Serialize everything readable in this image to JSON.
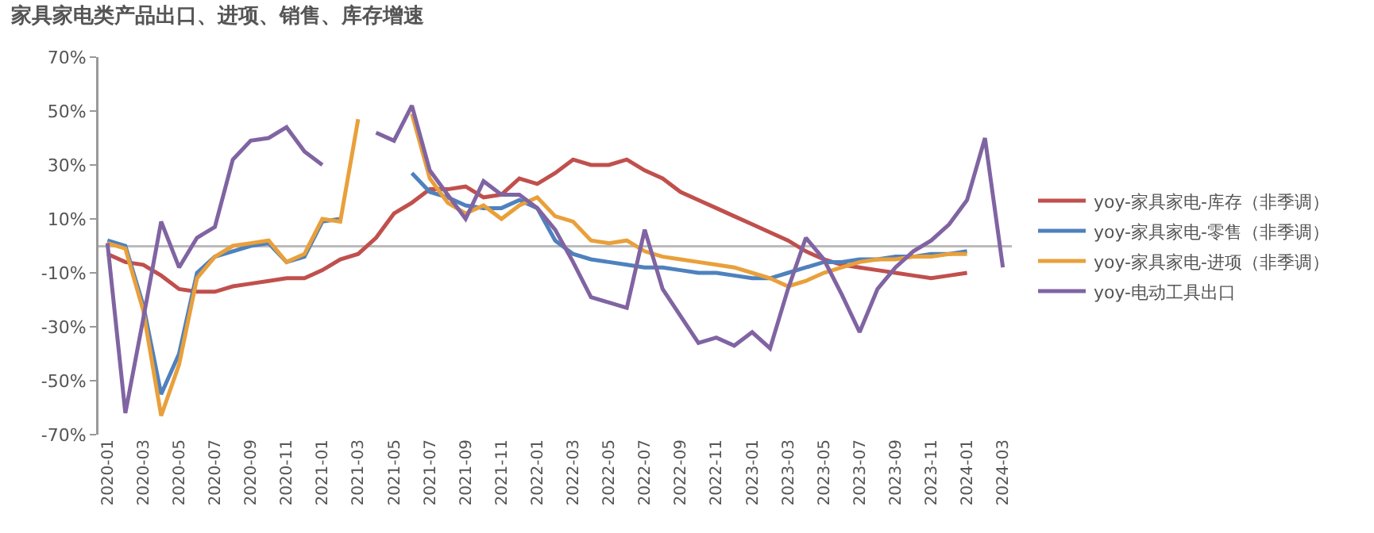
{
  "chart_data": {
    "type": "line",
    "title": "家具家电类产品出口、进项、销售、库存增速",
    "categories": [
      "2020-01",
      null,
      "2020-03",
      null,
      "2020-05",
      null,
      "2020-07",
      null,
      "2020-09",
      null,
      "2020-11",
      null,
      "2021-01",
      null,
      "2021-03",
      null,
      "2021-05",
      null,
      "2021-07",
      null,
      "2021-09",
      null,
      "2021-11",
      null,
      "2022-01",
      null,
      "2022-03",
      null,
      "2022-05",
      null,
      "2022-07",
      null,
      "2022-09",
      null,
      "2022-11",
      null,
      "2023-01",
      null,
      "2023-03",
      null,
      "2023-05",
      null,
      "2023-07",
      null,
      "2023-09",
      null,
      "2023-11",
      null,
      "2024-01",
      null,
      "2024-03"
    ],
    "series": [
      {
        "name": "yoy-家具家电-库存（非季调）",
        "color": "#c0504d",
        "values": [
          -3,
          -6,
          -7,
          -11,
          -16,
          -17,
          -17,
          -15,
          -14,
          -13,
          -12,
          -12,
          -9,
          -5,
          -3,
          3,
          12,
          16,
          21,
          21,
          22,
          18,
          19,
          25,
          23,
          27,
          32,
          30,
          30,
          32,
          28,
          25,
          20,
          17,
          14,
          11,
          8,
          5,
          2,
          -2,
          -5,
          -7,
          -8,
          -9,
          -10,
          -11,
          -12,
          -11,
          -10,
          null,
          null
        ]
      },
      {
        "name": "yoy-家具家电-零售（非季调）",
        "color": "#4f81bd",
        "values": [
          2,
          0,
          -22,
          -55,
          -40,
          -10,
          -4,
          -2,
          0,
          1,
          -6,
          -4,
          9,
          10,
          null,
          null,
          null,
          27,
          20,
          18,
          15,
          14,
          14,
          17,
          14,
          2,
          -3,
          -5,
          -6,
          -7,
          -8,
          -8,
          -9,
          -10,
          -10,
          -11,
          -12,
          -12,
          -10,
          -8,
          -6,
          -6,
          -5,
          -5,
          -4,
          -4,
          -3,
          -3,
          -2,
          null,
          null
        ]
      },
      {
        "name": "yoy-家具家电-进项（非季调）",
        "color": "#e9a03b",
        "values": [
          1,
          -1,
          -24,
          -63,
          -44,
          -12,
          -4,
          0,
          1,
          2,
          -6,
          -3,
          10,
          9,
          47,
          null,
          null,
          49,
          25,
          16,
          12,
          15,
          10,
          15,
          18,
          11,
          9,
          2,
          1,
          2,
          -2,
          -4,
          -5,
          -6,
          -7,
          -8,
          -10,
          -12,
          -15,
          -13,
          -10,
          -8,
          -6,
          -5,
          -5,
          -4,
          -4,
          -3,
          -3,
          null,
          null
        ]
      },
      {
        "name": "yoy-电动工具出口",
        "color": "#8064a2",
        "values": [
          1,
          -62,
          -27,
          9,
          -8,
          3,
          7,
          32,
          39,
          40,
          44,
          35,
          30,
          null,
          null,
          42,
          39,
          52,
          28,
          19,
          10,
          24,
          19,
          19,
          14,
          6,
          -6,
          -19,
          -21,
          -23,
          6,
          -16,
          -26,
          -36,
          -34,
          -37,
          -32,
          -38,
          -16,
          3,
          -5,
          -18,
          -32,
          -16,
          -8,
          -2,
          2,
          8,
          17,
          40,
          -8
        ]
      }
    ],
    "ylim": [
      -70,
      70
    ],
    "yticks": [
      {
        "value": -70,
        "label": "-70%"
      },
      {
        "value": -50,
        "label": "-50%"
      },
      {
        "value": -30,
        "label": "-30%"
      },
      {
        "value": -10,
        "label": "-10%"
      },
      {
        "value": 10,
        "label": "10%"
      },
      {
        "value": 30,
        "label": "30%"
      },
      {
        "value": 50,
        "label": "50%"
      },
      {
        "value": 70,
        "label": "70%"
      }
    ],
    "grid": false,
    "legend": "right",
    "marker": "none",
    "line_style": "solid"
  }
}
